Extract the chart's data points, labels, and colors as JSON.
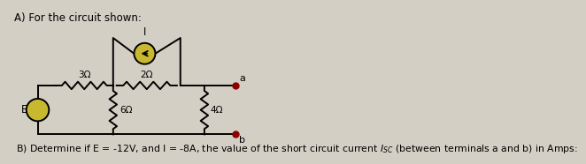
{
  "bg_color": "#d4cfc4",
  "title_A": "A) For the circuit shown:",
  "title_B_full": "B) Determine if E = -12V, and I = -8A, the value of the short circuit current $I_{SC}$ (between terminals a and b) in Amps:",
  "circuit": {
    "E_label": "E",
    "R1_label": "3Ω",
    "R2_label": "2Ω",
    "R3_label": "6Ω",
    "R4_label": "4Ω",
    "I_label": "I",
    "a_label": "a",
    "b_label": "b"
  },
  "lw": 1.4,
  "color": "black",
  "dot_color": "#8b0000",
  "source_color": "#c8b830",
  "resistor_amp": 0.055,
  "resistor_n": 7
}
